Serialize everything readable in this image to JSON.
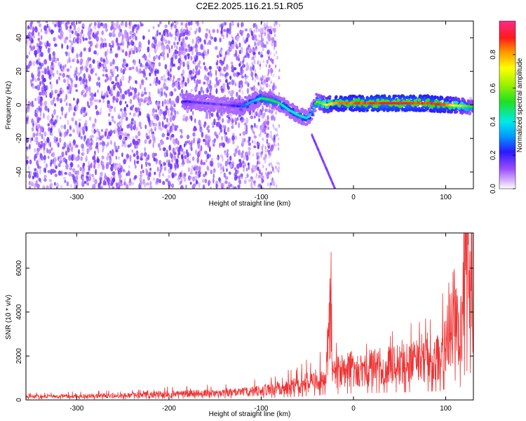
{
  "title": "C2E2.2025.116.21.51.R05",
  "chart_data": [
    {
      "type": "heatmap",
      "xlabel": "Height of straight line (km)",
      "ylabel": "Frequency (Hz)",
      "xlim": [
        -355,
        130
      ],
      "ylim": [
        -50,
        50
      ],
      "xticks": [
        -300,
        -200,
        -100,
        0,
        100
      ],
      "yticks": [
        -40,
        -20,
        0,
        20,
        40
      ],
      "colorbar": {
        "label": "Normalized spectral amplitude",
        "range": [
          0,
          1
        ],
        "ticks": [
          0.0,
          0.2,
          0.4,
          0.6,
          0.8
        ],
        "colormap": "rainbow (white-violet-blue-cyan-green-yellow-red-magenta)"
      },
      "ridge": {
        "x": [
          -180,
          -160,
          -140,
          -120,
          -110,
          -100,
          -90,
          -80,
          -70,
          -60,
          -50,
          -45,
          -40,
          -35,
          -30,
          -20,
          0,
          20,
          40,
          60,
          80,
          100,
          130
        ],
        "y": [
          2,
          1,
          0,
          -1,
          2,
          4,
          3,
          1,
          -3,
          -6,
          -8,
          -4,
          2,
          1,
          0,
          1,
          1,
          1,
          1,
          1,
          1,
          0,
          -1
        ],
        "amplitude": [
          0.2,
          0.15,
          0.15,
          0.25,
          0.35,
          0.45,
          0.5,
          0.45,
          0.4,
          0.45,
          0.4,
          0.3,
          0.55,
          0.6,
          0.7,
          0.8,
          0.85,
          0.9,
          0.9,
          0.9,
          0.88,
          0.85,
          0.5
        ]
      },
      "grid": false
    },
    {
      "type": "line",
      "xlabel": "Height of straight line (km)",
      "ylabel": "SNR (10 * v/v)",
      "xlim": [
        -355,
        130
      ],
      "ylim": [
        0,
        7600
      ],
      "xticks": [
        -300,
        -200,
        -100,
        0,
        100
      ],
      "yticks": [
        0,
        2000,
        4000,
        6000
      ],
      "series": [
        {
          "color": "#ee3333",
          "x": [
            -355,
            -300,
            -250,
            -200,
            -150,
            -120,
            -100,
            -80,
            -60,
            -50,
            -40,
            -30,
            -25,
            -22,
            -20,
            -10,
            0,
            20,
            40,
            60,
            80,
            95,
            100,
            105,
            110,
            115,
            120,
            125,
            130
          ],
          "y": [
            150,
            180,
            220,
            280,
            330,
            380,
            450,
            550,
            700,
            850,
            1000,
            1200,
            4300,
            1200,
            1300,
            1400,
            1500,
            1550,
            1650,
            1800,
            1900,
            2000,
            2600,
            3700,
            4500,
            2500,
            5500,
            7300,
            3800
          ]
        }
      ],
      "grid": false
    }
  ]
}
